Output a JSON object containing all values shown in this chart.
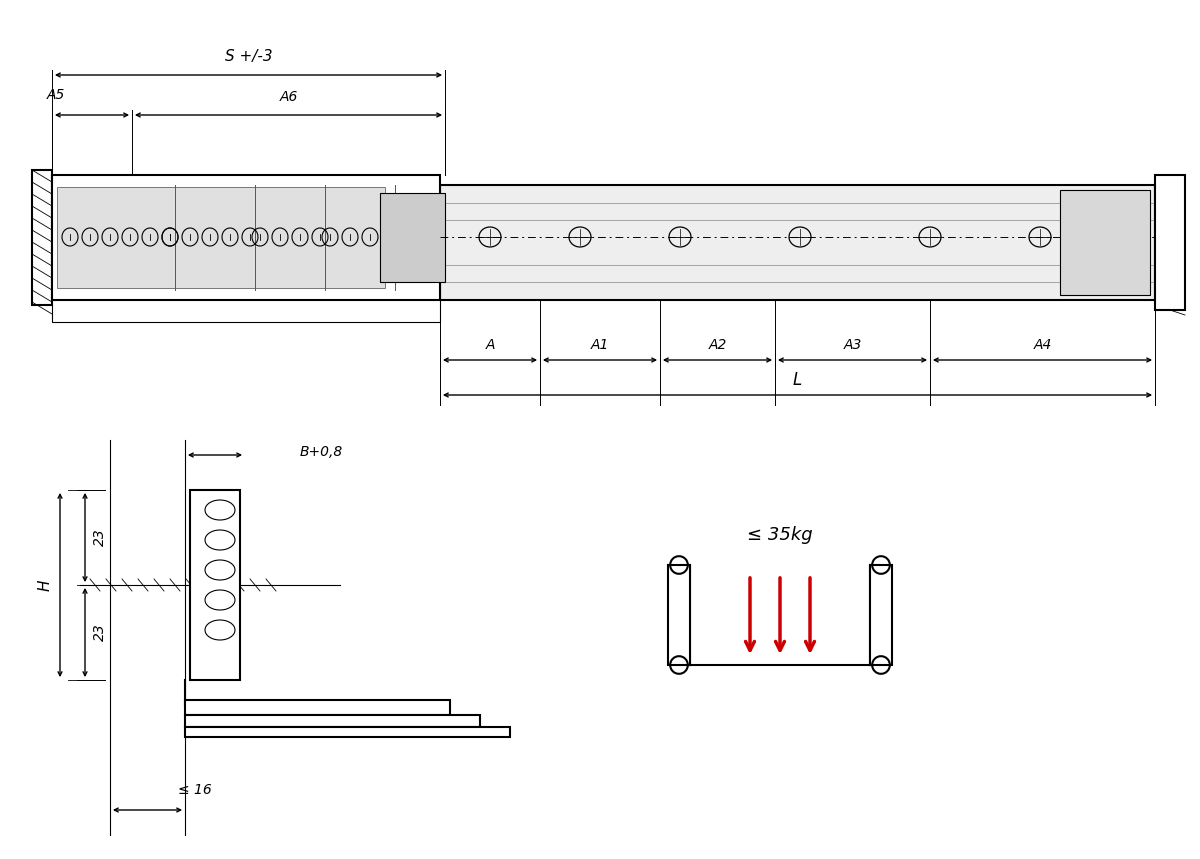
{
  "bg_color": "#ffffff",
  "line_color": "#000000",
  "red_color": "#cc0000",
  "labels": {
    "S": "S +/-3",
    "A5": "A5",
    "A6": "A6",
    "A": "A",
    "A1": "A1",
    "A2": "A2",
    "A3": "A3",
    "A4": "A4",
    "L": "L",
    "H": "H",
    "B": "B+0,8",
    "dim23": "23",
    "dim16": "≤ 16",
    "load": "≤ 35kg"
  }
}
